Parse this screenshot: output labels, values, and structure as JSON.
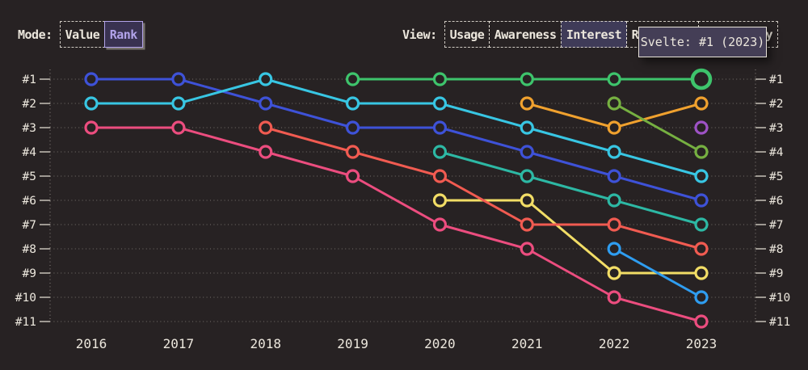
{
  "colors": {
    "background": "#272223",
    "text": "#ece7dd",
    "grid": "#b5afa6",
    "tick": "#d9d3c9",
    "accent_lavender": "#b2a3ea",
    "tooltip_bg": "#443e56"
  },
  "header": {
    "mode": {
      "label": "Mode:",
      "options": [
        {
          "label": "Value",
          "selected": false
        },
        {
          "label": "Rank",
          "selected": true
        }
      ]
    },
    "view": {
      "label": "View:",
      "options": [
        {
          "label": "Usage",
          "selected": false
        },
        {
          "label": "Awareness",
          "selected": false
        },
        {
          "label": "Interest",
          "selected": true
        },
        {
          "label": "Retention",
          "selected": false
        },
        {
          "label": "Positivity",
          "selected": false
        }
      ]
    }
  },
  "tooltip": {
    "text": "Svelte: #1 (2023)"
  },
  "chart_data": {
    "type": "line",
    "subtype": "bump-chart-rankings",
    "title": "",
    "xlabel": "",
    "ylabel": "",
    "x": [
      2016,
      2017,
      2018,
      2019,
      2020,
      2021,
      2022,
      2023
    ],
    "y_axis": {
      "labels": [
        "#1",
        "#2",
        "#3",
        "#4",
        "#5",
        "#6",
        "#7",
        "#8",
        "#9",
        "#10",
        "#11"
      ],
      "shown_on_left": true,
      "shown_on_right": true,
      "direction": "rank-1-at-top"
    },
    "grid": "dotted-horizontal-rows",
    "legend": "none",
    "series": [
      {
        "name": "blue",
        "color": "#3e52d8",
        "ranks": [
          1,
          1,
          2,
          3,
          3,
          4,
          5,
          6
        ]
      },
      {
        "name": "cyan",
        "color": "#38c6e3",
        "ranks": [
          2,
          2,
          1,
          2,
          2,
          3,
          4,
          5
        ]
      },
      {
        "name": "magenta",
        "color": "#ec4d7f",
        "ranks": [
          3,
          3,
          4,
          5,
          7,
          8,
          10,
          11
        ]
      },
      {
        "name": "teal",
        "color": "#2db8a4",
        "ranks": [
          null,
          null,
          null,
          null,
          4,
          5,
          6,
          7
        ]
      },
      {
        "name": "yellow",
        "color": "#f2dd66",
        "ranks": [
          null,
          null,
          null,
          null,
          6,
          6,
          9,
          9
        ]
      },
      {
        "name": "coral",
        "color": "#f15b51",
        "ranks": [
          null,
          null,
          3,
          4,
          5,
          7,
          7,
          8
        ]
      },
      {
        "name": "orange",
        "color": "#f0a12e",
        "ranks": [
          null,
          null,
          null,
          null,
          null,
          2,
          3,
          2
        ]
      },
      {
        "name": "olive",
        "color": "#76b041",
        "ranks": [
          null,
          null,
          null,
          null,
          null,
          null,
          2,
          4
        ]
      },
      {
        "name": "sky-blue",
        "color": "#2f9df0",
        "ranks": [
          null,
          null,
          null,
          null,
          null,
          null,
          8,
          10
        ]
      },
      {
        "name": "purple",
        "color": "#9e52c5",
        "ranks": [
          null,
          null,
          null,
          null,
          null,
          null,
          null,
          3
        ]
      },
      {
        "name": "svelte-green",
        "color": "#3ec46c",
        "ranks": [
          null,
          null,
          null,
          1,
          1,
          1,
          1,
          1
        ],
        "highlight_last": true
      }
    ],
    "highlight": {
      "series": "svelte-green",
      "year": 2023,
      "rank": 1,
      "tooltip": "Svelte: #1 (2023)"
    }
  }
}
